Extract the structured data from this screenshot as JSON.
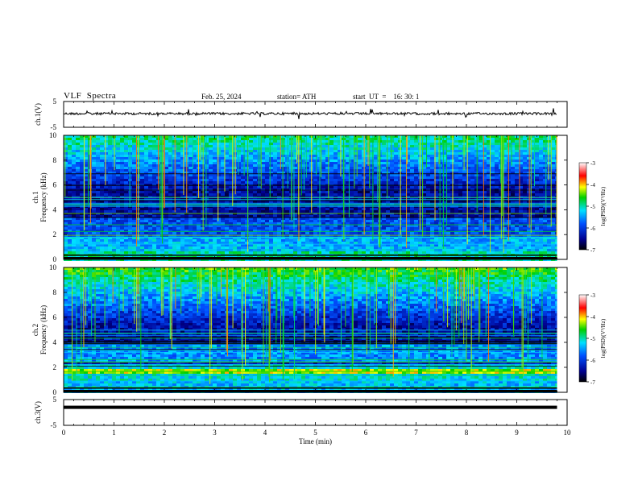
{
  "header": {
    "title": "VLF  Spectra",
    "date": "Feb. 25, 2024",
    "station": "station= ATH",
    "start": "start  UT  =    16: 30: 1"
  },
  "chart_data": [
    {
      "type": "line",
      "ylabel": "ch.1(V)",
      "ylim": [
        -5,
        5
      ],
      "y_tick_labels": [
        "5",
        "-5"
      ],
      "xlim": [
        0,
        10
      ],
      "trace_level": 0.3,
      "trace_end_min": 9.8
    },
    {
      "type": "heatmap",
      "ylabel": "Frequency  (kHz)",
      "ylabel2": "ch.1",
      "ylim": [
        0,
        10
      ],
      "y_tick_labels": [
        "0",
        "2",
        "4",
        "6",
        "8",
        "10"
      ],
      "xlim": [
        0,
        10
      ],
      "data_end_min": 9.8,
      "colorbar": {
        "label": "log(PSD)(V²/Hz)",
        "range": [
          -7,
          -3
        ],
        "tick_labels": [
          "-3",
          "-4",
          "-5",
          "-6",
          "-7"
        ]
      }
    },
    {
      "type": "heatmap",
      "ylabel": "Frequency  (kHz)",
      "ylabel2": "ch.2",
      "ylim": [
        0,
        10
      ],
      "y_tick_labels": [
        "0",
        "2",
        "4",
        "6",
        "8",
        "10"
      ],
      "xlim": [
        0,
        10
      ],
      "data_end_min": 9.8,
      "colorbar": {
        "label": "log(PSD)(V²/Hz)",
        "range": [
          -7,
          -3
        ],
        "tick_labels": [
          "-3",
          "-4",
          "-5",
          "-6",
          "-7"
        ]
      }
    },
    {
      "type": "line",
      "ylabel": "ch.3(V)",
      "ylim": [
        -5,
        5
      ],
      "y_tick_labels": [
        "5",
        "-5"
      ],
      "xlim": [
        0,
        10
      ],
      "trace_level": 2,
      "trace_end_min": 9.8,
      "xlabel": "Time  (min)",
      "x_tick_labels": [
        "0",
        "1",
        "2",
        "3",
        "4",
        "5",
        "6",
        "7",
        "8",
        "9",
        "10"
      ]
    }
  ]
}
